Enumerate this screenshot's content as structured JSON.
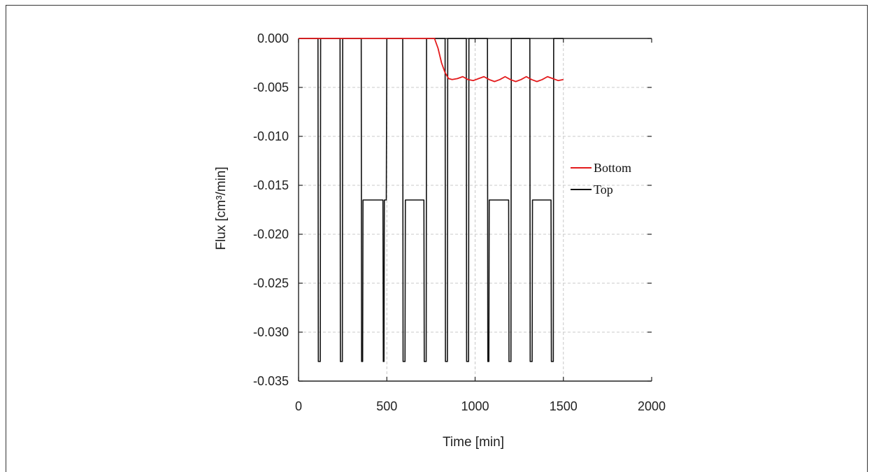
{
  "chart_data": {
    "type": "line",
    "title": "",
    "xlabel": "Time [min]",
    "ylabel": "Flux [cm³/min]",
    "xlim": [
      0,
      2000
    ],
    "ylim": [
      -0.035,
      0.0
    ],
    "x_ticks": [
      "0",
      "500",
      "1000",
      "1500",
      "2000"
    ],
    "y_ticks": [
      "0.000",
      "-0.005",
      "-0.010",
      "-0.015",
      "-0.020",
      "-0.025",
      "-0.030",
      "-0.035"
    ],
    "grid": true,
    "legend_position": "right",
    "series": [
      {
        "name": "Bottom",
        "color": "#e31a1c",
        "x": [
          0,
          750,
          770,
          790,
          810,
          830,
          850,
          870,
          900,
          930,
          960,
          990,
          1020,
          1050,
          1080,
          1110,
          1140,
          1170,
          1200,
          1230,
          1260,
          1290,
          1320,
          1350,
          1380,
          1410,
          1440,
          1470,
          1500
        ],
        "y": [
          0.0,
          0.0,
          0.0,
          -0.001,
          -0.0025,
          -0.0035,
          -0.0041,
          -0.0042,
          -0.0041,
          -0.0039,
          -0.0042,
          -0.0043,
          -0.0041,
          -0.0039,
          -0.0042,
          -0.0044,
          -0.0042,
          -0.0039,
          -0.0042,
          -0.0044,
          -0.0042,
          -0.0039,
          -0.0042,
          -0.0044,
          -0.0042,
          -0.0039,
          -0.0041,
          -0.0043,
          -0.0042
        ]
      },
      {
        "name": "Top",
        "color": "#111111",
        "x": [
          0,
          110,
          112,
          123,
          125,
          235,
          237,
          248,
          250,
          355,
          357,
          363,
          365,
          478,
          480,
          484,
          486,
          497,
          500,
          590,
          592,
          603,
          605,
          710,
          712,
          723,
          725,
          830,
          832,
          843,
          845,
          950,
          952,
          963,
          965,
          1070,
          1072,
          1078,
          1080,
          1190,
          1192,
          1203,
          1205,
          1310,
          1312,
          1323,
          1325,
          1430,
          1432,
          1443,
          1445,
          1500
        ],
        "y": [
          0.0,
          0.0,
          -0.033,
          -0.033,
          0.0,
          0.0,
          -0.033,
          -0.033,
          0.0,
          0.0,
          -0.033,
          -0.033,
          -0.0165,
          -0.0165,
          -0.033,
          -0.033,
          -0.0165,
          -0.0165,
          0.0,
          0.0,
          -0.033,
          -0.033,
          -0.0165,
          -0.0165,
          -0.033,
          -0.033,
          0.0,
          0.0,
          -0.033,
          -0.033,
          0.0,
          0.0,
          -0.033,
          -0.033,
          0.0,
          0.0,
          -0.033,
          -0.033,
          -0.0165,
          -0.0165,
          -0.033,
          -0.033,
          0.0,
          0.0,
          -0.033,
          -0.033,
          -0.0165,
          -0.0165,
          -0.033,
          -0.033,
          0.0,
          0.0
        ]
      }
    ]
  }
}
